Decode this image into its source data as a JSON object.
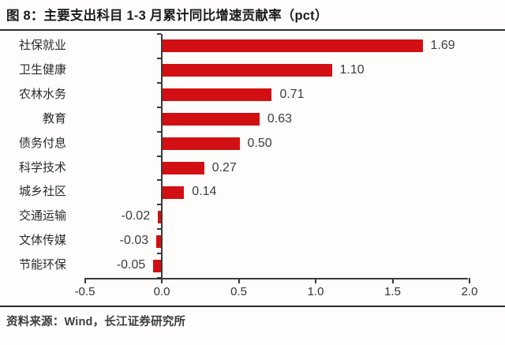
{
  "header": {
    "title": "图 8：主要支出科目 1-3 月累计同比增速贡献率（pct）"
  },
  "footer": {
    "source": "资料来源：Wind，长江证券研究所"
  },
  "colors": {
    "bar": "#d20f13",
    "axis": "#3a3a3a",
    "rule": "#2e2e2e",
    "title_text": "#1c1c1c",
    "label_text": "#2b2b2b",
    "value_text": "#3d3d3d"
  },
  "chart_data": {
    "type": "bar",
    "orientation": "horizontal",
    "title": "图 8：主要支出科目 1-3 月累计同比增速贡献率（pct）",
    "unit": "pct",
    "categories": [
      "社保就业",
      "卫生健康",
      "农林水务",
      "教育",
      "债务付息",
      "科学技术",
      "城乡社区",
      "交通运输",
      "文体传媒",
      "节能环保"
    ],
    "values": [
      1.69,
      1.1,
      0.71,
      0.63,
      0.5,
      0.27,
      0.14,
      -0.02,
      -0.03,
      -0.05
    ],
    "value_labels": [
      "1.69",
      "1.10",
      "0.71",
      "0.63",
      "0.50",
      "0.27",
      "0.14",
      "-0.02",
      "-0.03",
      "-0.05"
    ],
    "xlim": [
      -0.5,
      2.0
    ],
    "x_tick_values": [
      -0.5,
      0.0,
      0.5,
      1.0,
      1.5,
      2.0
    ],
    "x_ticks": [
      "-0.5",
      "0.0",
      "0.5",
      "1.0",
      "1.5",
      "2.0"
    ],
    "grid": false,
    "legend": null
  }
}
